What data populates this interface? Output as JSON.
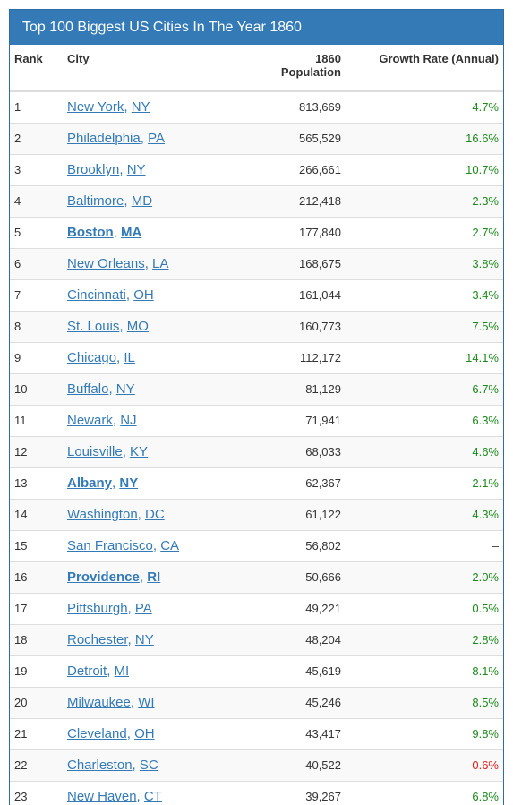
{
  "panel_title": "Top 100 Biggest US Cities In The Year 1860",
  "headers": {
    "rank": "Rank",
    "city": "City",
    "pop_year": "1860",
    "pop_label": "Population",
    "growth": "Growth Rate (Annual)"
  },
  "colors": {
    "header_bg": "#337ab7",
    "link": "#337ab7",
    "positive": "#1a8a1a",
    "negative": "#e0201c"
  },
  "rows": [
    {
      "rank": "1",
      "city": "New York",
      "state": "NY",
      "population": "813,669",
      "growth": "4.7%",
      "bold": false
    },
    {
      "rank": "2",
      "city": "Philadelphia",
      "state": "PA",
      "population": "565,529",
      "growth": "16.6%",
      "bold": false
    },
    {
      "rank": "3",
      "city": "Brooklyn",
      "state": "NY",
      "population": "266,661",
      "growth": "10.7%",
      "bold": false
    },
    {
      "rank": "4",
      "city": "Baltimore",
      "state": "MD",
      "population": "212,418",
      "growth": "2.3%",
      "bold": false
    },
    {
      "rank": "5",
      "city": "Boston",
      "state": "MA",
      "population": "177,840",
      "growth": "2.7%",
      "bold": true
    },
    {
      "rank": "6",
      "city": "New Orleans",
      "state": "LA",
      "population": "168,675",
      "growth": "3.8%",
      "bold": false
    },
    {
      "rank": "7",
      "city": "Cincinnati",
      "state": "OH",
      "population": "161,044",
      "growth": "3.4%",
      "bold": false
    },
    {
      "rank": "8",
      "city": "St. Louis",
      "state": "MO",
      "population": "160,773",
      "growth": "7.5%",
      "bold": false
    },
    {
      "rank": "9",
      "city": "Chicago",
      "state": "IL",
      "population": "112,172",
      "growth": "14.1%",
      "bold": false
    },
    {
      "rank": "10",
      "city": "Buffalo",
      "state": "NY",
      "population": "81,129",
      "growth": "6.7%",
      "bold": false
    },
    {
      "rank": "11",
      "city": "Newark",
      "state": "NJ",
      "population": "71,941",
      "growth": "6.3%",
      "bold": false
    },
    {
      "rank": "12",
      "city": "Louisville",
      "state": "KY",
      "population": "68,033",
      "growth": "4.6%",
      "bold": false
    },
    {
      "rank": "13",
      "city": "Albany",
      "state": "NY",
      "population": "62,367",
      "growth": "2.1%",
      "bold": true
    },
    {
      "rank": "14",
      "city": "Washington",
      "state": "DC",
      "population": "61,122",
      "growth": "4.3%",
      "bold": false
    },
    {
      "rank": "15",
      "city": "San Francisco",
      "state": "CA",
      "population": "56,802",
      "growth": "–",
      "bold": false
    },
    {
      "rank": "16",
      "city": "Providence",
      "state": "RI",
      "population": "50,666",
      "growth": "2.0%",
      "bold": true
    },
    {
      "rank": "17",
      "city": "Pittsburgh",
      "state": "PA",
      "population": "49,221",
      "growth": "0.5%",
      "bold": false
    },
    {
      "rank": "18",
      "city": "Rochester",
      "state": "NY",
      "population": "48,204",
      "growth": "2.8%",
      "bold": false
    },
    {
      "rank": "19",
      "city": "Detroit",
      "state": "MI",
      "population": "45,619",
      "growth": "8.1%",
      "bold": false
    },
    {
      "rank": "20",
      "city": "Milwaukee",
      "state": "WI",
      "population": "45,246",
      "growth": "8.5%",
      "bold": false
    },
    {
      "rank": "21",
      "city": "Cleveland",
      "state": "OH",
      "population": "43,417",
      "growth": "9.8%",
      "bold": false
    },
    {
      "rank": "22",
      "city": "Charleston",
      "state": "SC",
      "population": "40,522",
      "growth": "-0.6%",
      "bold": false
    },
    {
      "rank": "23",
      "city": "New Haven",
      "state": "CT",
      "population": "39,267",
      "growth": "6.8%",
      "bold": false
    }
  ]
}
